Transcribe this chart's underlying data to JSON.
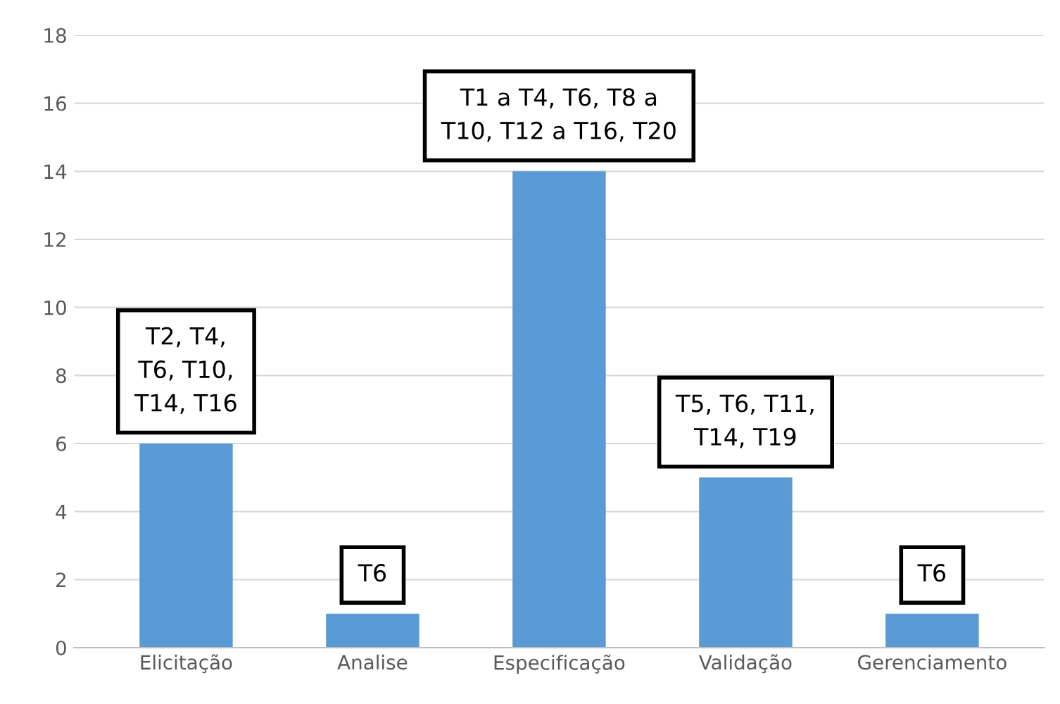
{
  "chart_data": {
    "type": "bar",
    "categories": [
      "Elicitação",
      "Analise",
      "Especificação",
      "Validação",
      "Gerenciamento"
    ],
    "values": [
      6,
      1,
      14,
      5,
      1
    ],
    "color": "#5b9bd5",
    "ylim": [
      0,
      18
    ],
    "yticks": [
      0,
      2,
      4,
      6,
      8,
      10,
      12,
      14,
      16,
      18
    ],
    "grid": "y",
    "annotations": [
      {
        "text": "T2, T4,\nT6, T10,\nT14, T16",
        "x": "Elicitação",
        "y": 6
      },
      {
        "text": "T6",
        "x": "Analise",
        "y": 1
      },
      {
        "text": "T1 a T4, T6, T8 a\nT10, T12 a T16, T20",
        "x": "Especificação",
        "y": 14
      },
      {
        "text": "T5, T6, T11,\nT14, T19",
        "x": "Validação",
        "y": 5
      },
      {
        "text": "T6",
        "x": "Gerenciamento",
        "y": 1
      }
    ]
  }
}
